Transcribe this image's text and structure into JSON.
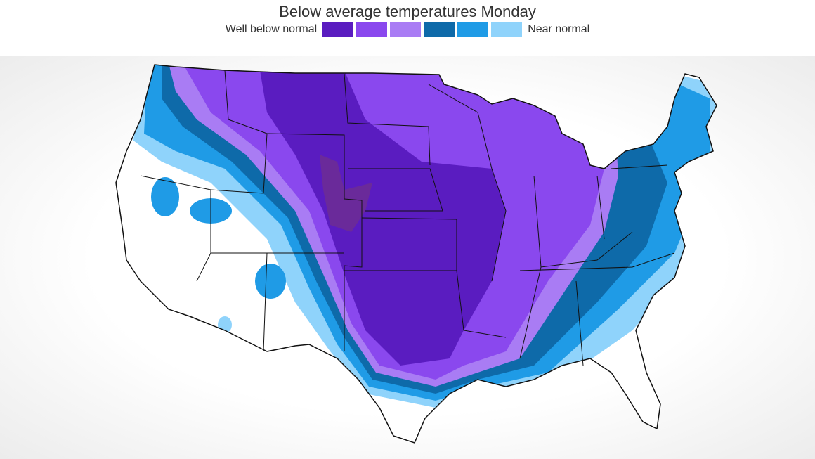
{
  "header": {
    "title": "Below average temperatures Monday",
    "legend": {
      "low_label": "Well below normal",
      "high_label": "Near normal",
      "colors": [
        "#5a1cc0",
        "#8a48ee",
        "#a97cf4",
        "#0e6aa9",
        "#1f9be6",
        "#8fd3fb"
      ]
    }
  }
}
